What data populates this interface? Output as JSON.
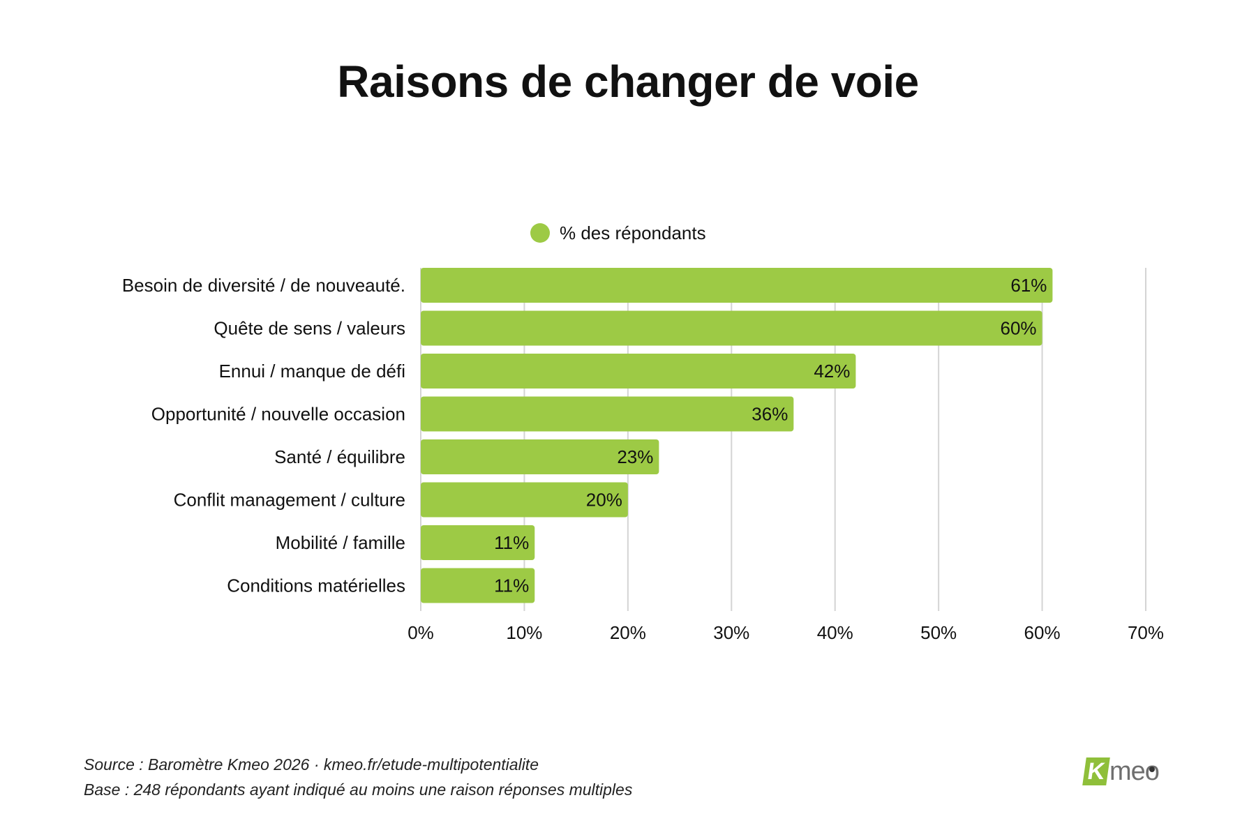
{
  "chart_data": {
    "type": "bar",
    "orientation": "horizontal",
    "title": "Raisons de changer de voie",
    "categories": [
      "Besoin de diversité / de nouveauté.",
      "Quête de sens / valeurs",
      "Ennui / manque de défi",
      "Opportunité / nouvelle occasion",
      "Santé / équilibre",
      "Conflit management / culture",
      "Mobilité / famille",
      "Conditions matérielles"
    ],
    "series": [
      {
        "name": "% des répondants",
        "values": [
          61,
          60,
          42,
          36,
          23,
          20,
          11,
          11
        ],
        "labels": [
          "61%",
          "60%",
          "42%",
          "36%",
          "23%",
          "20%",
          "11%",
          "11%"
        ],
        "color": "#9dca45"
      }
    ],
    "xlim": [
      0,
      70
    ],
    "x_ticks": [
      0,
      10,
      20,
      30,
      40,
      50,
      60,
      70
    ],
    "x_tick_labels": [
      "0%",
      "10%",
      "20%",
      "30%",
      "40%",
      "50%",
      "60%",
      "70%"
    ],
    "grid": "vertical",
    "legend_position": "top-center"
  },
  "legend": {
    "label": "% des répondants"
  },
  "footer": {
    "source": "Source : Baromètre Kmeo 2026 · kmeo.fr/etude-multipotentialite",
    "base": "Base : 248 répondants ayant indiqué au moins une raison réponses multiples"
  },
  "logo": {
    "text": "Kmeo",
    "letter": "K",
    "rest": "meo",
    "color": "#8fbf3a"
  }
}
